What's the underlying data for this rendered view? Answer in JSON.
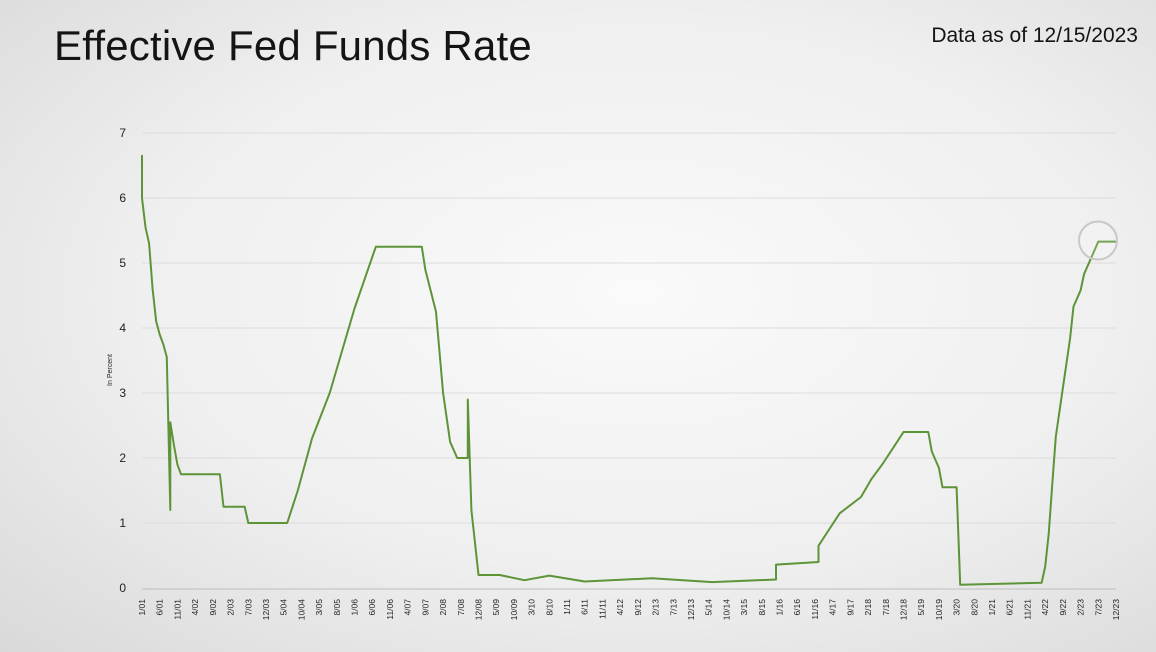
{
  "header": {
    "title": "Effective Fed Funds Rate",
    "as_of": "Data as of 12/15/2023"
  },
  "colors": {
    "line": "#5d9438",
    "grid": "#dcdcdc",
    "marker": "#c8c8c8"
  },
  "chart_data": {
    "type": "line",
    "title": "Effective Fed Funds Rate",
    "xlabel": "",
    "ylabel": "In Percent",
    "ylim": [
      0,
      7
    ],
    "yticks": [
      0,
      1,
      2,
      3,
      4,
      5,
      6,
      7
    ],
    "grid": true,
    "x_tick_labels": [
      "1/01",
      "6/01",
      "11/01",
      "4/02",
      "9/02",
      "2/03",
      "7/03",
      "12/03",
      "5/04",
      "10/04",
      "3/05",
      "8/05",
      "1/06",
      "6/06",
      "11/06",
      "4/07",
      "9/07",
      "2/08",
      "7/08",
      "12/08",
      "5/09",
      "10/09",
      "3/10",
      "8/10",
      "1/11",
      "6/11",
      "11/11",
      "4/12",
      "9/12",
      "2/13",
      "7/13",
      "12/13",
      "5/14",
      "10/14",
      "3/15",
      "8/15",
      "1/16",
      "6/16",
      "11/16",
      "4/17",
      "9/17",
      "2/18",
      "7/18",
      "12/18",
      "5/19",
      "10/19",
      "3/20",
      "8/20",
      "1/21",
      "6/21",
      "11/21",
      "4/22",
      "9/22",
      "2/23",
      "7/23",
      "12/23"
    ],
    "series": [
      {
        "values": [
          {
            "x": "1/01",
            "y": 6.65
          },
          {
            "x": "1/01",
            "y": 6.0
          },
          {
            "x": "2/01",
            "y": 5.55
          },
          {
            "x": "3/01",
            "y": 5.3
          },
          {
            "x": "4/01",
            "y": 4.6
          },
          {
            "x": "5/01",
            "y": 4.1
          },
          {
            "x": "6/01",
            "y": 3.9
          },
          {
            "x": "7/01",
            "y": 3.75
          },
          {
            "x": "8/01",
            "y": 3.55
          },
          {
            "x": "9/01",
            "y": 1.2
          },
          {
            "x": "9/01",
            "y": 2.55
          },
          {
            "x": "10/01",
            "y": 2.2
          },
          {
            "x": "11/01",
            "y": 1.9
          },
          {
            "x": "12/01",
            "y": 1.75
          },
          {
            "x": "6/02",
            "y": 1.75
          },
          {
            "x": "11/02",
            "y": 1.75
          },
          {
            "x": "12/02",
            "y": 1.25
          },
          {
            "x": "6/03",
            "y": 1.25
          },
          {
            "x": "7/03",
            "y": 1.0
          },
          {
            "x": "6/04",
            "y": 1.0
          },
          {
            "x": "9/04",
            "y": 1.5
          },
          {
            "x": "1/05",
            "y": 2.3
          },
          {
            "x": "6/05",
            "y": 3.0
          },
          {
            "x": "1/06",
            "y": 4.3
          },
          {
            "x": "7/06",
            "y": 5.25
          },
          {
            "x": "8/07",
            "y": 5.25
          },
          {
            "x": "9/07",
            "y": 4.9
          },
          {
            "x": "12/07",
            "y": 4.25
          },
          {
            "x": "2/08",
            "y": 3.0
          },
          {
            "x": "4/08",
            "y": 2.25
          },
          {
            "x": "6/08",
            "y": 2.0
          },
          {
            "x": "9/08",
            "y": 2.0
          },
          {
            "x": "9/08",
            "y": 2.9
          },
          {
            "x": "10/08",
            "y": 1.2
          },
          {
            "x": "12/08",
            "y": 0.2
          },
          {
            "x": "6/09",
            "y": 0.2
          },
          {
            "x": "1/10",
            "y": 0.12
          },
          {
            "x": "8/10",
            "y": 0.19
          },
          {
            "x": "6/11",
            "y": 0.1
          },
          {
            "x": "1/13",
            "y": 0.15
          },
          {
            "x": "6/14",
            "y": 0.09
          },
          {
            "x": "12/15",
            "y": 0.13
          },
          {
            "x": "12/15",
            "y": 0.36
          },
          {
            "x": "12/16",
            "y": 0.4
          },
          {
            "x": "12/16",
            "y": 0.65
          },
          {
            "x": "3/17",
            "y": 0.9
          },
          {
            "x": "6/17",
            "y": 1.15
          },
          {
            "x": "12/17",
            "y": 1.4
          },
          {
            "x": "3/18",
            "y": 1.68
          },
          {
            "x": "6/18",
            "y": 1.9
          },
          {
            "x": "9/18",
            "y": 2.15
          },
          {
            "x": "12/18",
            "y": 2.4
          },
          {
            "x": "7/19",
            "y": 2.4
          },
          {
            "x": "8/19",
            "y": 2.1
          },
          {
            "x": "10/19",
            "y": 1.85
          },
          {
            "x": "11/19",
            "y": 1.55
          },
          {
            "x": "3/20",
            "y": 1.55
          },
          {
            "x": "4/20",
            "y": 0.05
          },
          {
            "x": "3/22",
            "y": 0.08
          },
          {
            "x": "4/22",
            "y": 0.33
          },
          {
            "x": "5/22",
            "y": 0.83
          },
          {
            "x": "6/22",
            "y": 1.58
          },
          {
            "x": "7/22",
            "y": 2.33
          },
          {
            "x": "9/22",
            "y": 3.08
          },
          {
            "x": "11/22",
            "y": 3.83
          },
          {
            "x": "12/22",
            "y": 4.33
          },
          {
            "x": "2/23",
            "y": 4.58
          },
          {
            "x": "3/23",
            "y": 4.83
          },
          {
            "x": "5/23",
            "y": 5.08
          },
          {
            "x": "7/23",
            "y": 5.33
          },
          {
            "x": "12/23",
            "y": 5.33
          }
        ]
      }
    ]
  }
}
